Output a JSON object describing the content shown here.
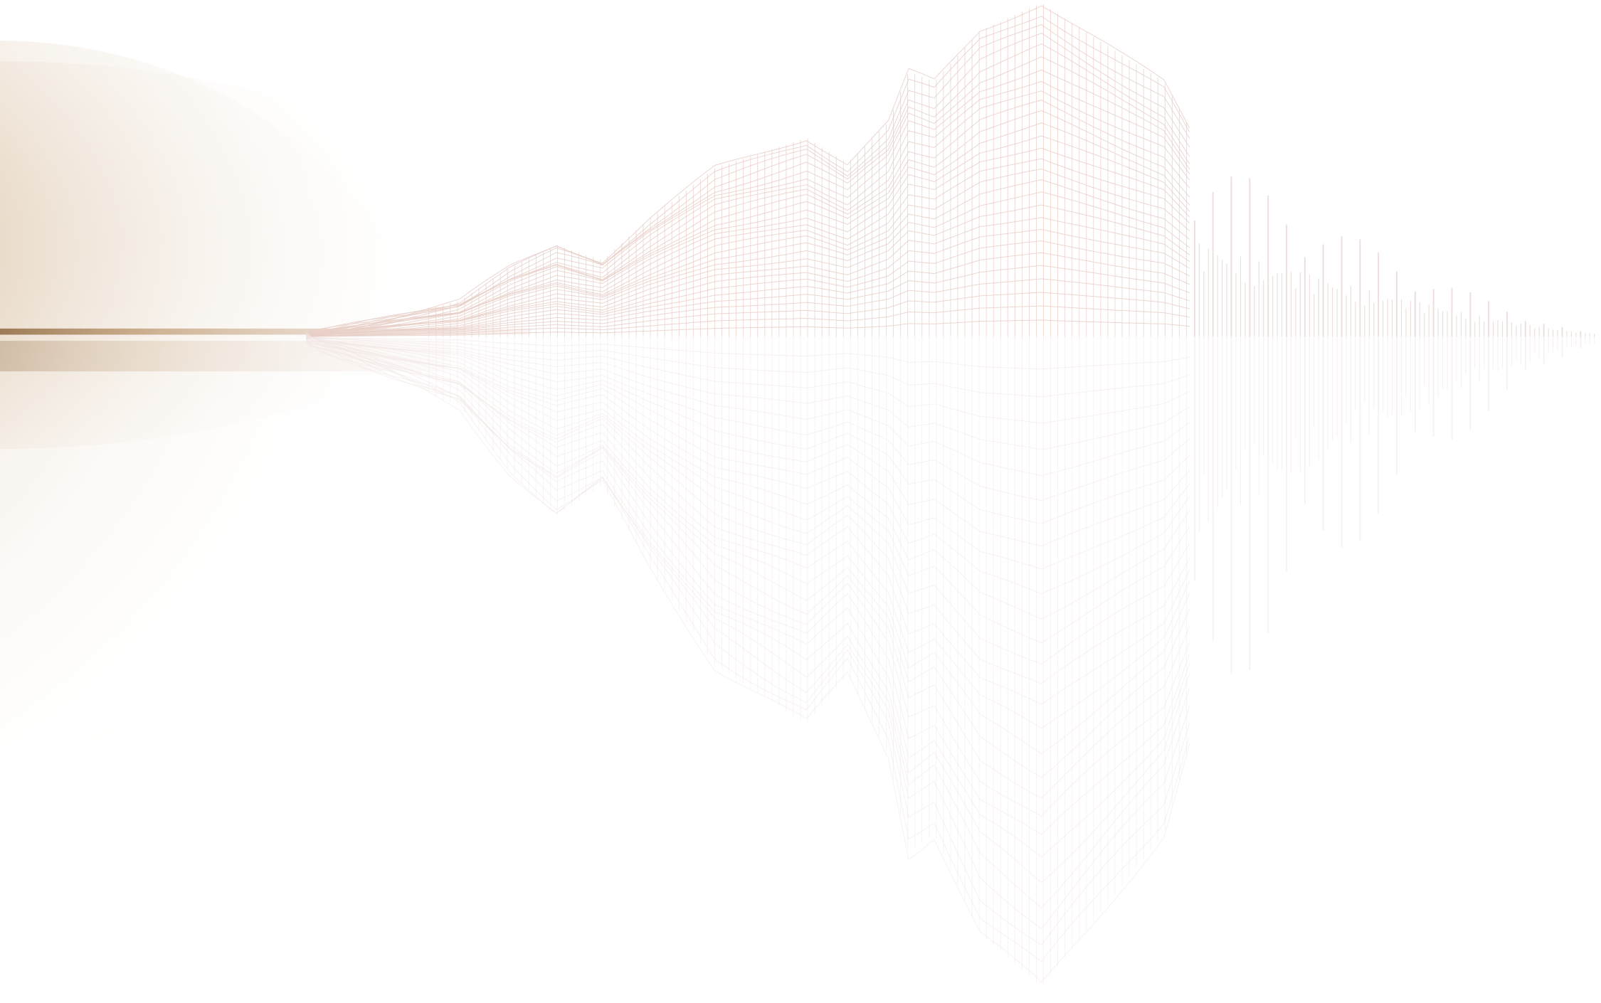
{
  "scene": {
    "description_kind": "decorative-background",
    "colors": {
      "background": "#ffffff",
      "glow": "#b58b5c",
      "glow_dark": "#8a6238",
      "mesh": "#e9cfc8",
      "mesh_reflection": "#f1e6e4",
      "bars": "#eadbd8"
    }
  }
}
